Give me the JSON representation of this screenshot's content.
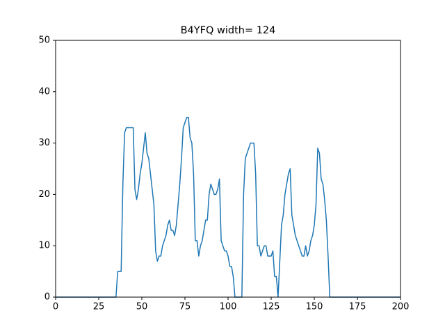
{
  "chart_data": {
    "type": "line",
    "title": "B4YFQ width= 124",
    "x": [
      0,
      35,
      36,
      38,
      39,
      40,
      41,
      45,
      46,
      47,
      48,
      49,
      50,
      52,
      53,
      54,
      55,
      56,
      57,
      58,
      59,
      60,
      61,
      62,
      64,
      65,
      66,
      67,
      68,
      69,
      70,
      71,
      72,
      73,
      74,
      75,
      76,
      77,
      78,
      79,
      80,
      81,
      82,
      83,
      84,
      85,
      86,
      87,
      88,
      89,
      90,
      91,
      92,
      93,
      94,
      95,
      96,
      97,
      98,
      99,
      100,
      101,
      102,
      103,
      104,
      108,
      109,
      110,
      113,
      115,
      116,
      117,
      118,
      119,
      120,
      121,
      122,
      123,
      125,
      126,
      127,
      128,
      129,
      130,
      131,
      132,
      133,
      134,
      135,
      136,
      137,
      138,
      139,
      143,
      144,
      145,
      146,
      147,
      148,
      149,
      150,
      151,
      152,
      153,
      154,
      155,
      156,
      157,
      158,
      159,
      200
    ],
    "series": [
      {
        "color": "#1f77b4",
        "values": [
          0,
          0,
          5,
          5,
          22,
          32,
          33,
          33,
          21,
          19,
          21,
          24,
          26,
          32,
          28,
          27,
          24,
          21,
          18,
          9,
          7,
          8,
          8,
          10,
          12,
          14,
          15,
          13,
          13,
          12,
          14,
          18,
          22,
          27,
          33,
          34,
          35,
          35,
          31,
          30,
          24,
          11,
          11,
          8,
          10,
          11,
          13,
          15,
          15,
          20,
          22,
          21,
          20,
          20,
          21,
          23,
          11,
          10,
          9,
          9,
          8,
          6,
          6,
          4,
          0,
          0,
          20,
          27,
          30,
          30,
          24,
          10,
          10,
          8,
          9,
          10,
          10,
          8,
          8,
          9,
          4,
          4,
          0,
          7,
          14,
          16,
          20,
          22,
          24,
          25,
          16,
          14,
          12,
          8,
          8,
          10,
          8,
          9,
          11,
          12,
          14,
          18,
          29,
          28,
          23,
          22,
          19,
          15,
          8,
          0,
          0
        ]
      }
    ],
    "xlim": [
      0,
      200
    ],
    "ylim": [
      0,
      50
    ],
    "xticks": [
      0,
      25,
      50,
      75,
      100,
      125,
      150,
      175,
      200
    ],
    "yticks": [
      0,
      10,
      20,
      30,
      40,
      50
    ]
  }
}
